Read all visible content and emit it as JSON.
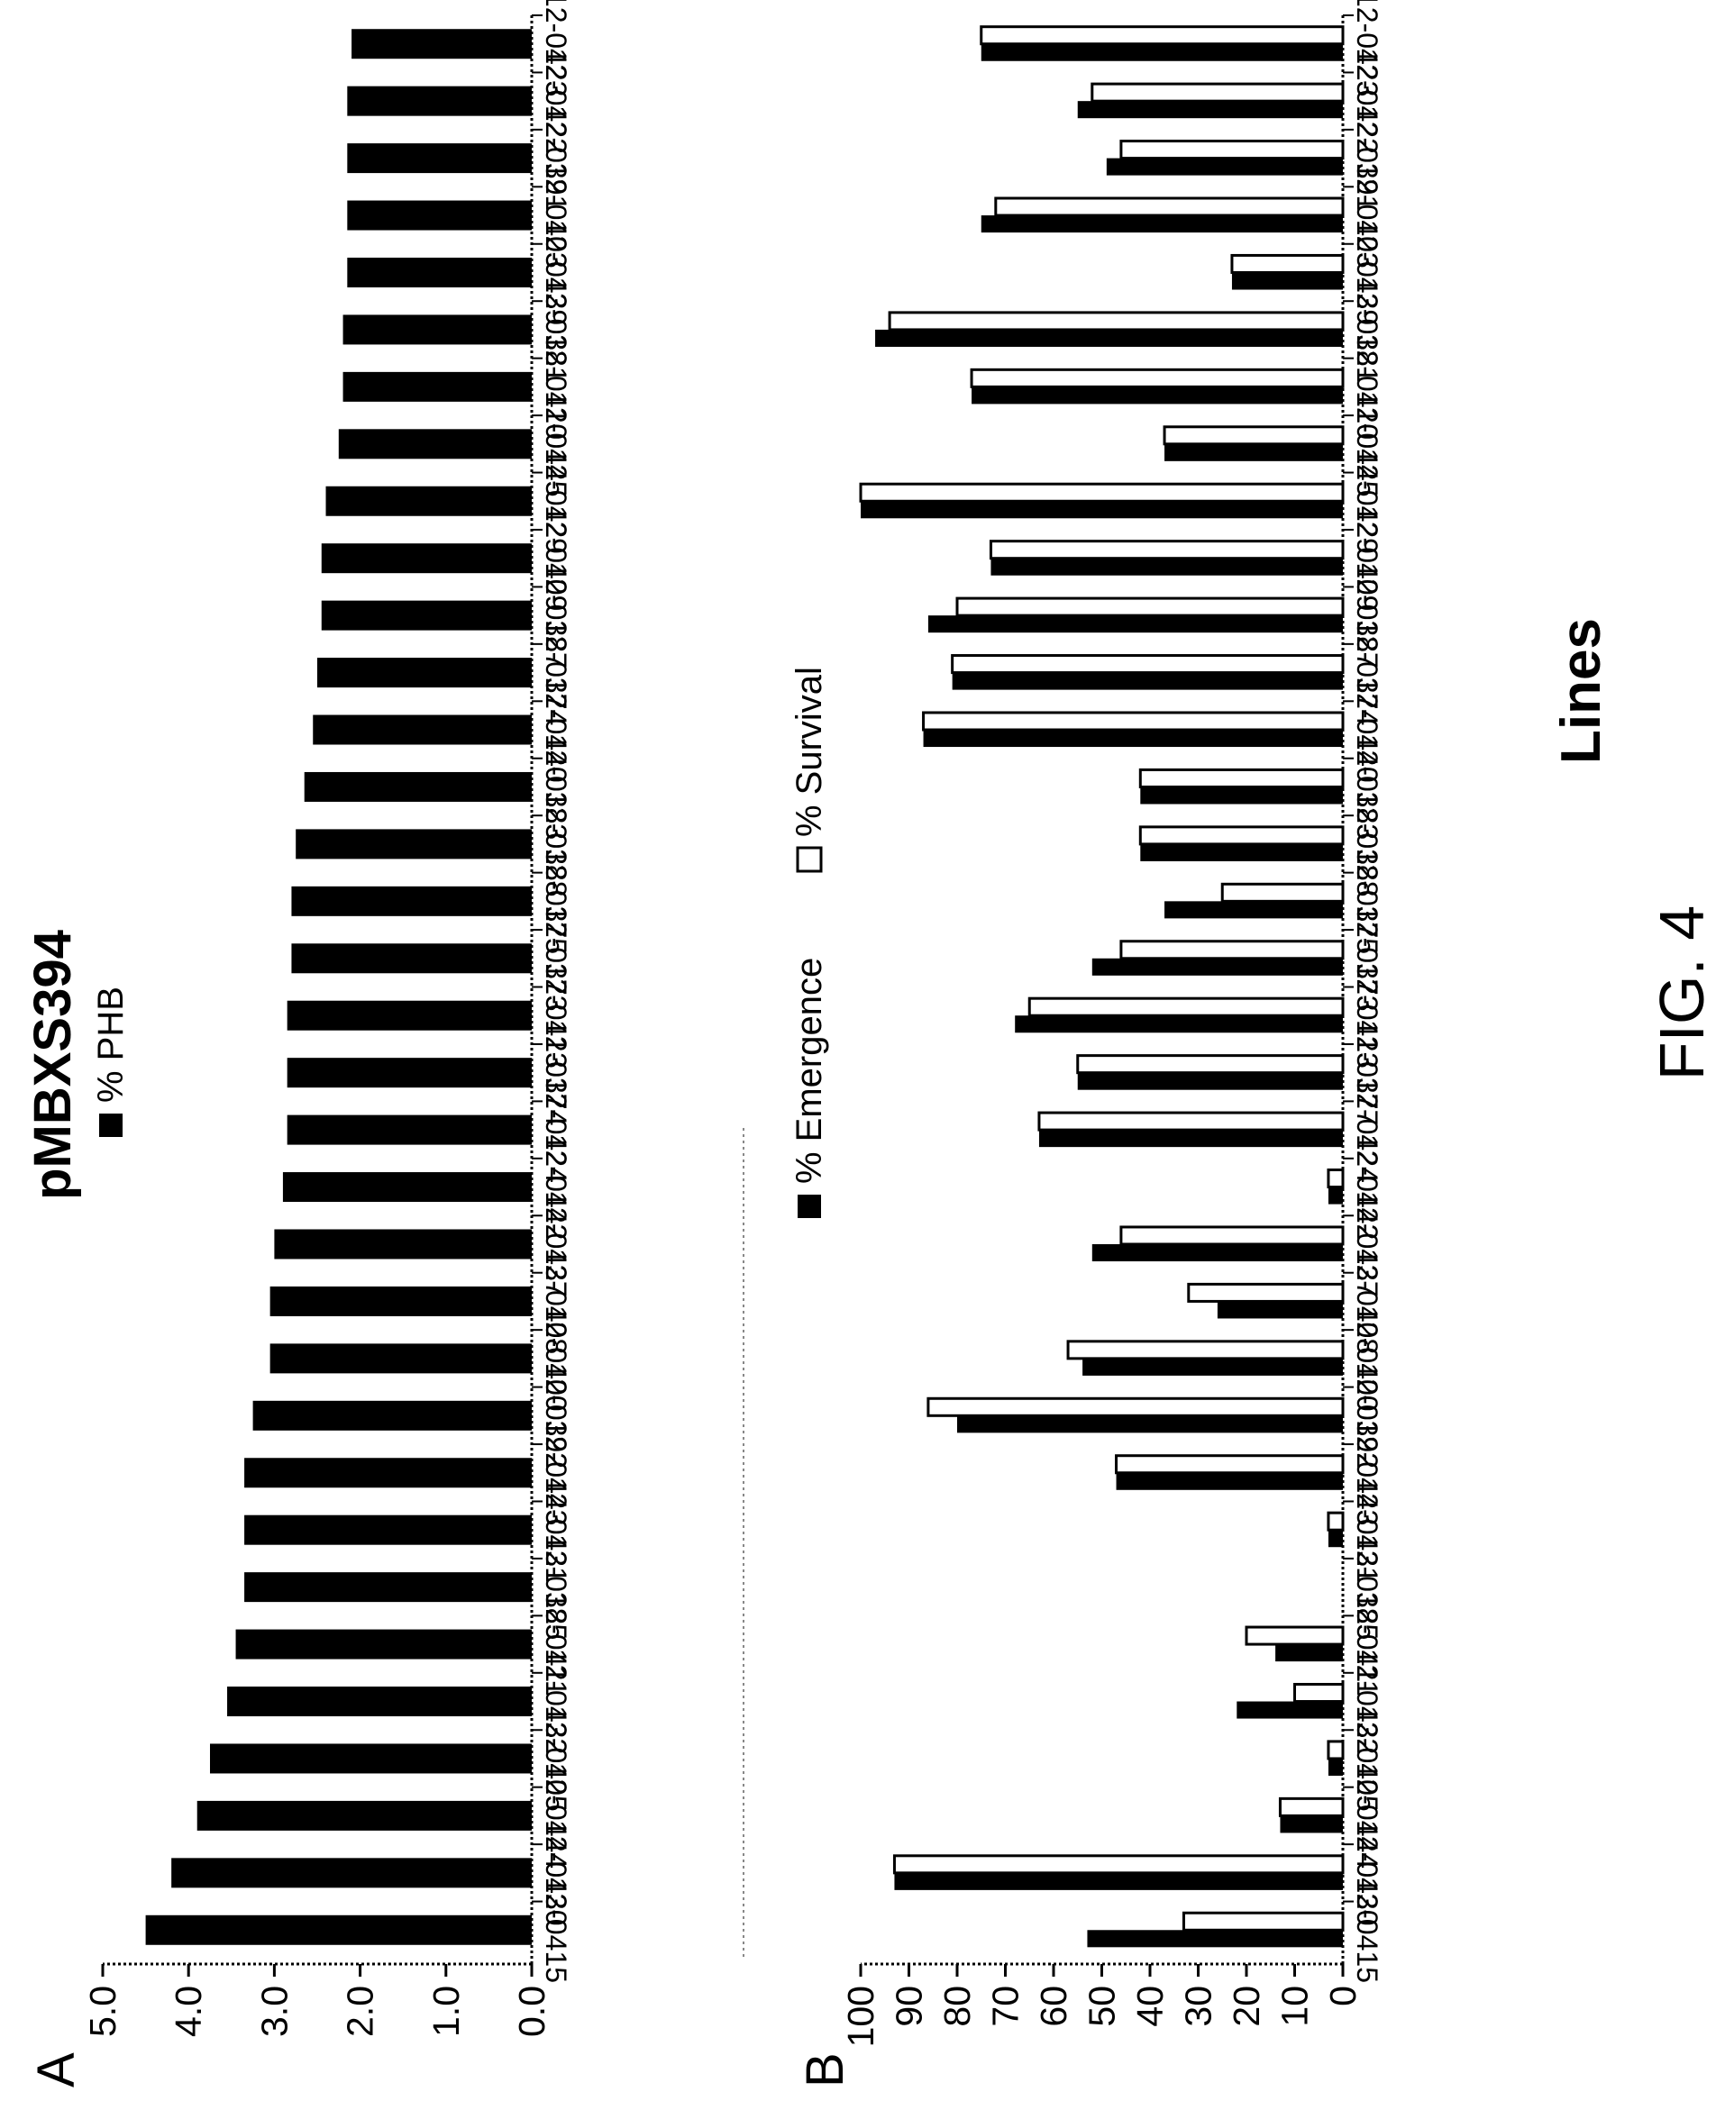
{
  "figure_label": "FIG. 4",
  "panel_a": {
    "letter": "A"
  },
  "panel_b": {
    "letter": "B"
  },
  "colors": {
    "emergence": "#000000",
    "survival": "#ffffff",
    "phb": "#000000"
  },
  "chart_data": [
    {
      "type": "bar",
      "title": "pMBXS394",
      "xlabel": "",
      "ylabel": "",
      "ylim": [
        0,
        5
      ],
      "yticks": [
        "0.0",
        "1.0",
        "2.0",
        "3.0",
        "4.0",
        "5.0"
      ],
      "legend_position": "top",
      "categories": [
        "12-0415",
        "12-0430",
        "12-0444",
        "12-0405",
        "12-0432",
        "12-0411",
        "12-0385",
        "12-0431",
        "12-0443",
        "12-0392",
        "12-0400",
        "12-0408",
        "12-0437",
        "12-0442",
        "12-0424",
        "12-0374",
        "12-0413",
        "12-0373",
        "12-0375",
        "12-0388",
        "12-0383",
        "12-0440",
        "12-0374",
        "12-0387",
        "12-0409",
        "12-0429",
        "12-0445",
        "12-0410",
        "12-0381",
        "12-0439",
        "12-0403",
        "12-0391",
        "12-0422",
        "12-0423"
      ],
      "series": [
        {
          "name": "% PHB",
          "values": [
            4.5,
            4.2,
            3.9,
            3.75,
            3.55,
            3.45,
            3.35,
            3.35,
            3.35,
            3.25,
            3.05,
            3.05,
            3.0,
            2.9,
            2.85,
            2.85,
            2.85,
            2.8,
            2.8,
            2.75,
            2.65,
            2.55,
            2.5,
            2.45,
            2.45,
            2.4,
            2.25,
            2.2,
            2.2,
            2.15,
            2.15,
            2.15,
            2.15,
            2.1
          ]
        }
      ]
    },
    {
      "type": "bar",
      "title": "",
      "xlabel": "Lines",
      "ylabel": "",
      "ylim": [
        0,
        100
      ],
      "yticks": [
        "0",
        "10",
        "20",
        "30",
        "40",
        "50",
        "60",
        "70",
        "80",
        "90",
        "100"
      ],
      "legend_position": "top",
      "categories": [
        "12-0415",
        "12-0430",
        "12-0444",
        "12-0405",
        "12-0432",
        "12-0411",
        "12-0385",
        "12-0431",
        "12-0443",
        "12-0392",
        "12-0400",
        "12-0408",
        "12-0437",
        "12-0442",
        "12-0424",
        "12-0377",
        "12-0413",
        "12-0373",
        "12-0375",
        "12-0388",
        "12-0383",
        "12-0440",
        "12-0374",
        "12-0387",
        "12-0409",
        "12-0429",
        "12-0445",
        "12-0410",
        "12-0381",
        "12-0439",
        "12-0403",
        "12-0391",
        "12-0422",
        "12-0423"
      ],
      "series": [
        {
          "name": "% Emergence",
          "values": [
            53,
            93,
            13,
            3,
            22,
            14,
            0,
            3,
            47,
            80,
            54,
            26,
            52,
            3,
            63,
            55,
            68,
            52,
            37,
            42,
            42,
            87,
            81,
            86,
            73,
            100,
            37,
            77,
            97,
            23,
            75,
            49,
            55,
            75
          ]
        },
        {
          "name": "% Survival",
          "values": [
            33,
            93,
            13,
            3,
            10,
            20,
            0,
            3,
            47,
            86,
            57,
            32,
            46,
            3,
            63,
            55,
            65,
            46,
            25,
            42,
            42,
            87,
            81,
            80,
            73,
            100,
            37,
            77,
            94,
            23,
            72,
            46,
            52,
            75
          ]
        }
      ]
    }
  ]
}
